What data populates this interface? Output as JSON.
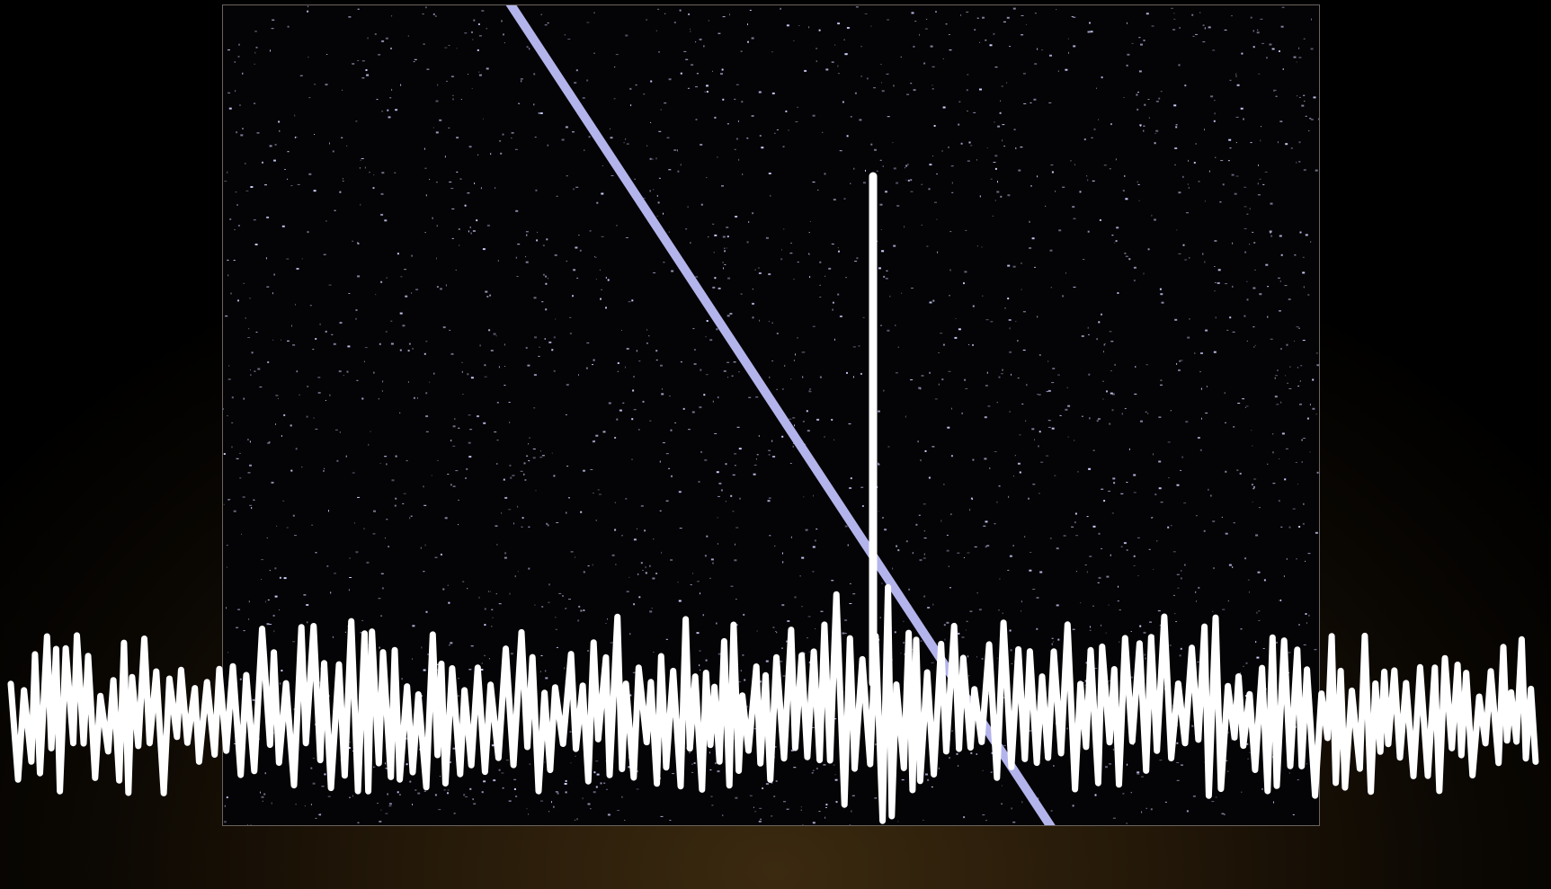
{
  "scene": {
    "background_colors": [
      "#000000",
      "#3b2a10"
    ],
    "panel_color": "#040305",
    "panel_border_color": "#6a6460",
    "speck_color": "#cfd2ff",
    "sweep_color": "#b4b4ec",
    "pulse_color": "#ffffff",
    "waveform_color": "#ffffff"
  }
}
